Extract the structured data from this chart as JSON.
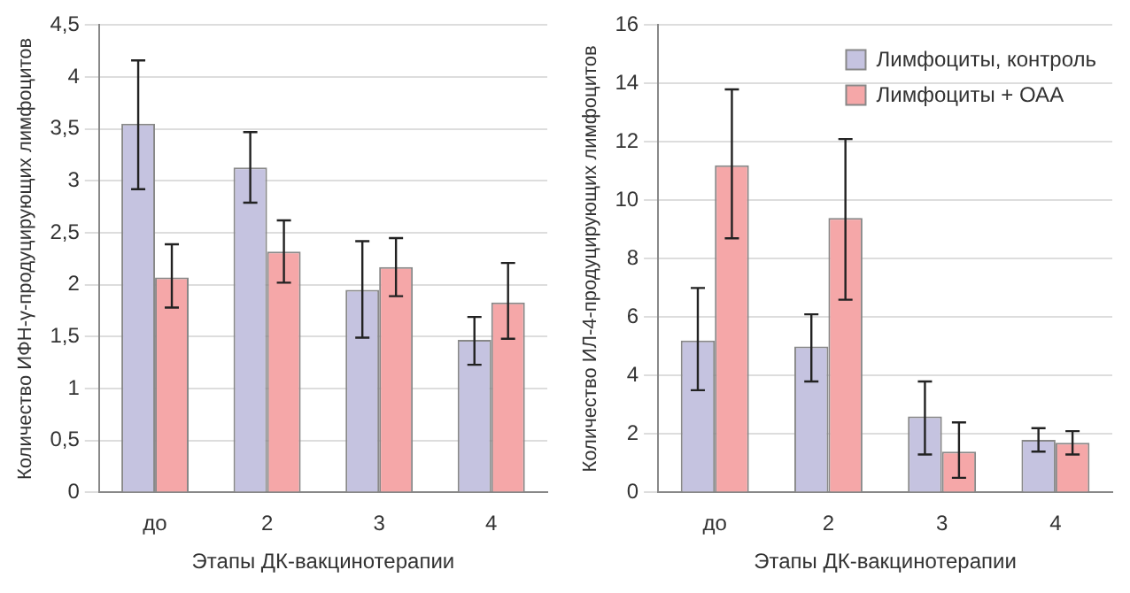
{
  "chart_data": [
    {
      "type": "bar",
      "categories": [
        "до",
        "2",
        "3",
        "4"
      ],
      "xlabel": "Этапы ДК-вакцинотерапии",
      "ylabel": "Количество ИФН-γ-продуцирующих лимфоцитов",
      "ylim": [
        0,
        4.5
      ],
      "yticks": [
        0,
        {
          "value": 0.5,
          "label": "0,5"
        },
        1,
        {
          "value": 1.5,
          "label": "1,5"
        },
        2,
        {
          "value": 2.5,
          "label": "2,5"
        },
        3,
        {
          "value": 3.5,
          "label": "3,5"
        },
        4,
        {
          "value": 4.5,
          "label": "4,5"
        }
      ],
      "grid": "y",
      "legend": false,
      "series": [
        {
          "color": "#c5c3e0",
          "values": [
            3.55,
            3.13,
            1.95,
            1.47
          ],
          "errors": [
            [
              2.92,
              4.16
            ],
            [
              2.79,
              3.47
            ],
            [
              1.49,
              2.42
            ],
            [
              1.23,
              1.69
            ]
          ]
        },
        {
          "color": "#f5a7a8",
          "values": [
            2.07,
            2.32,
            2.17,
            1.83
          ],
          "errors": [
            [
              1.78,
              2.39
            ],
            [
              2.02,
              2.62
            ],
            [
              1.89,
              2.45
            ],
            [
              1.48,
              2.21
            ]
          ]
        }
      ]
    },
    {
      "type": "bar",
      "categories": [
        "до",
        "2",
        "3",
        "4"
      ],
      "xlabel": "Этапы ДК-вакцинотерапии",
      "ylabel": "Количество ИЛ-4-продуцирующих лимфоцитов",
      "ylim": [
        0,
        16
      ],
      "yticks": [
        0,
        2,
        4,
        6,
        8,
        10,
        12,
        14,
        16
      ],
      "grid": "y",
      "legend": "top right",
      "series": [
        {
          "name": "Лимфоциты, контроль",
          "color": "#c5c3e0",
          "values": [
            5.2,
            5.0,
            2.6,
            1.8
          ],
          "errors": [
            [
              3.5,
              7.0
            ],
            [
              3.8,
              6.1
            ],
            [
              1.3,
              3.8
            ],
            [
              1.4,
              2.2
            ]
          ]
        },
        {
          "name": "Лимфоциты + ОАА",
          "color": "#f5a7a8",
          "values": [
            11.2,
            9.4,
            1.4,
            1.7
          ],
          "errors": [
            [
              8.7,
              13.8
            ],
            [
              6.6,
              12.1
            ],
            [
              0.5,
              2.4
            ],
            [
              1.3,
              2.1
            ]
          ]
        }
      ]
    }
  ]
}
